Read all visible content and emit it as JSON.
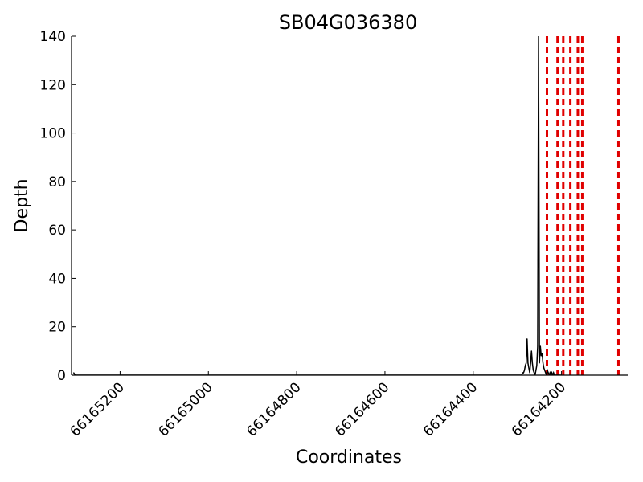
{
  "chart_data": {
    "type": "line",
    "title": "SB04G036380",
    "xlabel": "Coordinates",
    "ylabel": "Depth",
    "x_axis_inverted": true,
    "xlim": [
      66165310,
      66164050
    ],
    "ylim": [
      0,
      140
    ],
    "x_ticks": [
      66165200,
      66165000,
      66164800,
      66164600,
      66164400,
      66164200
    ],
    "y_ticks": [
      0,
      20,
      40,
      60,
      80,
      100,
      120,
      140
    ],
    "grid": false,
    "series": [
      {
        "color": "#000000",
        "style": "solid",
        "x": [
          66165305,
          66165302,
          66164290,
          66164288,
          66164286,
          66164284,
          66164282,
          66164280,
          66164278,
          66164276,
          66164274,
          66164272,
          66164270,
          66164268,
          66164266,
          66164264,
          66164262,
          66164260,
          66164258,
          66164256,
          66164254,
          66164252,
          66164250,
          66164248,
          66164246,
          66164244,
          66164242,
          66164240,
          66164238,
          66164236,
          66164234,
          66164232,
          66164230,
          66164228,
          66164226,
          66164224,
          66164222,
          66164220,
          66164218,
          66164216,
          66164214,
          66164212,
          66164210,
          66164208,
          66164206,
          66164204,
          66164200
        ],
        "y": [
          1,
          0,
          0,
          1,
          1,
          2,
          4,
          5,
          15,
          5,
          3,
          1,
          5,
          10,
          5,
          2,
          1,
          0,
          2,
          4,
          12,
          140,
          5,
          12,
          8,
          9,
          5,
          3,
          2,
          1,
          0,
          2,
          1,
          0,
          1,
          0,
          1,
          0,
          1,
          0,
          0,
          0,
          0,
          0,
          0,
          0,
          0
        ]
      }
    ],
    "vlines": {
      "color": "#e00000",
      "style": "dashed",
      "x": [
        66164233,
        66164209,
        66164196,
        66164180,
        66164163,
        66164153,
        66164071
      ]
    }
  }
}
